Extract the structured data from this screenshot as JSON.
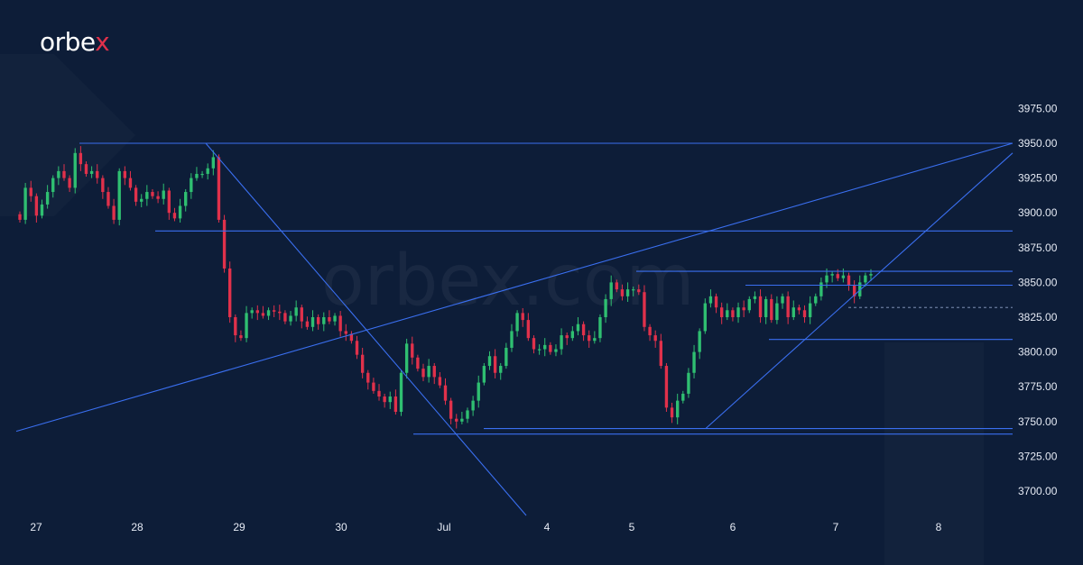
{
  "brand": {
    "prefix": "orbe",
    "accent": "x",
    "accent_color": "#e0314b"
  },
  "watermark": "orbex.com",
  "colors": {
    "background": "#0d1d38",
    "bull": "#2fbf71",
    "bear": "#e0314b",
    "trendline": "#3a6ff0",
    "text": "#e6ebf5"
  },
  "chart_data": {
    "type": "candlestick",
    "instrument": "",
    "title": "",
    "ylim": [
      3690,
      3990
    ],
    "y_ticks": [
      "3975.00",
      "3950.00",
      "3925.00",
      "3900.00",
      "3875.00",
      "3850.00",
      "3825.00",
      "3800.00",
      "3775.00",
      "3750.00",
      "3725.00",
      "3700.00"
    ],
    "x_ticks": [
      "27",
      "28",
      "29",
      "30",
      "Jul",
      "4",
      "5",
      "6",
      "7",
      "8"
    ],
    "grid": false,
    "closes": [
      3895,
      3918,
      3912,
      3898,
      3906,
      3915,
      3925,
      3930,
      3925,
      3918,
      3943,
      3935,
      3928,
      3930,
      3925,
      3915,
      3905,
      3895,
      3930,
      3925,
      3918,
      3908,
      3910,
      3915,
      3912,
      3910,
      3916,
      3900,
      3896,
      3905,
      3915,
      3925,
      3928,
      3928,
      3932,
      3940,
      3895,
      3860,
      3825,
      3812,
      3810,
      3828,
      3830,
      3828,
      3826,
      3830,
      3829,
      3828,
      3822,
      3826,
      3832,
      3822,
      3818,
      3825,
      3820,
      3825,
      3822,
      3826,
      3815,
      3813,
      3808,
      3798,
      3785,
      3778,
      3772,
      3768,
      3764,
      3768,
      3757,
      3785,
      3806,
      3796,
      3788,
      3782,
      3790,
      3782,
      3776,
      3765,
      3752,
      3750,
      3752,
      3758,
      3765,
      3778,
      3790,
      3797,
      3785,
      3790,
      3803,
      3815,
      3828,
      3823,
      3810,
      3802,
      3802,
      3805,
      3800,
      3802,
      3812,
      3810,
      3815,
      3820,
      3812,
      3808,
      3810,
      3825,
      3838,
      3850,
      3845,
      3840,
      3845,
      3845,
      3843,
      3818,
      3812,
      3808,
      3790,
      3760,
      3753,
      3765,
      3770,
      3785,
      3800,
      3815,
      3835,
      3840,
      3832,
      3825,
      3830,
      3825,
      3832,
      3830,
      3838,
      3840,
      3825,
      3838,
      3823,
      3835,
      3840,
      3825,
      3832,
      3830,
      3825,
      3835,
      3840,
      3850,
      3855,
      3856,
      3853,
      3855,
      3848,
      3840,
      3850,
      3855,
      3856
    ],
    "annotations": {
      "horizontal_levels": [
        3950.0,
        3887.0,
        3858.0,
        3848.0,
        3809.0,
        3745.0,
        3741.0
      ],
      "trendlines": [
        {
          "from": [
            "27",
            3743.0
          ],
          "to": [
            "8",
            3950.0
          ]
        },
        {
          "from": [
            "29",
            3950.0
          ],
          "to": [
            "4",
            3690.0
          ]
        },
        {
          "from": [
            "6",
            3745.0
          ],
          "to": [
            "8",
            3943.0
          ]
        }
      ]
    }
  }
}
